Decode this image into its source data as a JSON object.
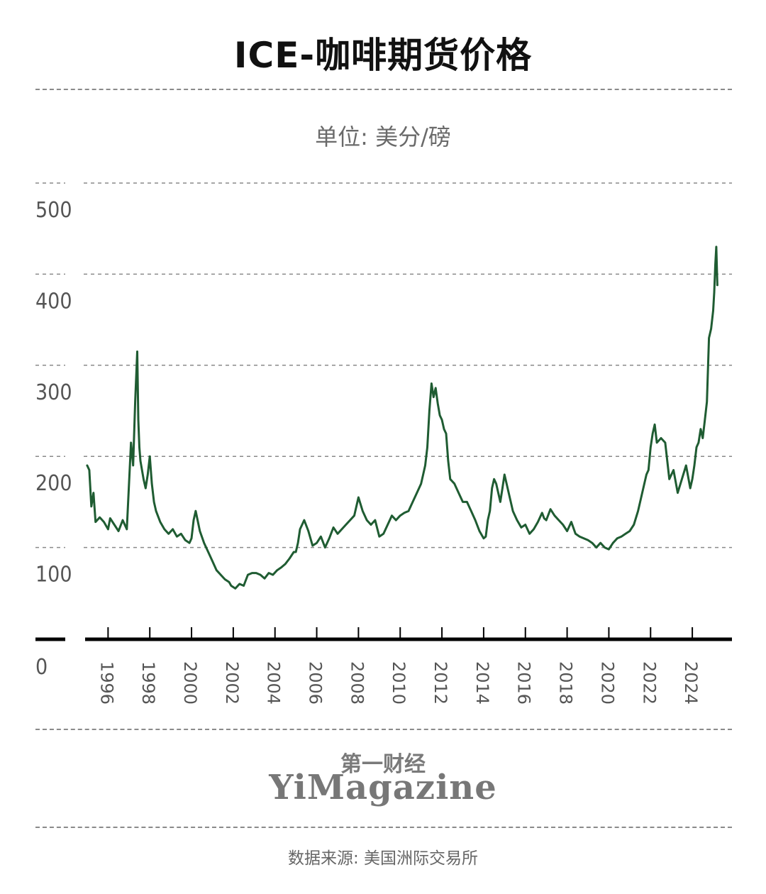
{
  "title": "ICE-咖啡期货价格",
  "subtitle": "单位: 美分/磅",
  "brand": {
    "cn": "第一财经",
    "en": "YiMagazine"
  },
  "source": "数据来源: 美国洲际交易所",
  "colors": {
    "line": "#1f5c32",
    "grid": "#8a8a8a",
    "axis": "#000000",
    "text": "#555555"
  },
  "chart_data": {
    "type": "line",
    "title": "ICE-咖啡期货价格",
    "subtitle": "单位: 美分/磅",
    "xlabel": "",
    "ylabel": "",
    "ylim": [
      0,
      500
    ],
    "xlim": [
      1994.9,
      2025.9
    ],
    "grid": true,
    "yticks": [
      0,
      100,
      200,
      300,
      400,
      500
    ],
    "xticks": [
      1996,
      1998,
      2000,
      2002,
      2004,
      2006,
      2008,
      2010,
      2012,
      2014,
      2016,
      2018,
      2020,
      2022,
      2024
    ],
    "series": [
      {
        "x": [
          1995.0,
          1995.1,
          1995.2,
          1995.3,
          1995.4,
          1995.6,
          1995.8,
          1996.0,
          1996.1,
          1996.3,
          1996.5,
          1996.7,
          1996.9,
          1997.1,
          1997.2,
          1997.3,
          1997.4,
          1997.45,
          1997.5,
          1997.55,
          1997.7,
          1997.8,
          1997.9,
          1998.0,
          1998.1,
          1998.2,
          1998.3,
          1998.5,
          1998.7,
          1998.9,
          1999.1,
          1999.3,
          1999.5,
          1999.7,
          1999.9,
          2000.0,
          2000.1,
          2000.2,
          2000.4,
          2000.6,
          2000.8,
          2001.0,
          2001.2,
          2001.4,
          2001.6,
          2001.8,
          2001.9,
          2002.1,
          2002.3,
          2002.5,
          2002.7,
          2002.9,
          2003.1,
          2003.3,
          2003.5,
          2003.7,
          2003.9,
          2004.1,
          2004.3,
          2004.5,
          2004.7,
          2004.9,
          2005.0,
          2005.1,
          2005.2,
          2005.4,
          2005.6,
          2005.8,
          2006.0,
          2006.2,
          2006.4,
          2006.6,
          2006.8,
          2007.0,
          2007.2,
          2007.4,
          2007.6,
          2007.8,
          2008.0,
          2008.2,
          2008.4,
          2008.6,
          2008.8,
          2009.0,
          2009.2,
          2009.4,
          2009.6,
          2009.8,
          2010.0,
          2010.2,
          2010.4,
          2010.6,
          2010.8,
          2011.0,
          2011.1,
          2011.2,
          2011.3,
          2011.4,
          2011.5,
          2011.6,
          2011.7,
          2011.8,
          2011.9,
          2012.0,
          2012.1,
          2012.2,
          2012.3,
          2012.4,
          2012.6,
          2012.8,
          2013.0,
          2013.2,
          2013.4,
          2013.6,
          2013.8,
          2014.0,
          2014.1,
          2014.2,
          2014.3,
          2014.4,
          2014.5,
          2014.6,
          2014.7,
          2014.8,
          2014.9,
          2015.0,
          2015.2,
          2015.4,
          2015.6,
          2015.8,
          2016.0,
          2016.2,
          2016.4,
          2016.6,
          2016.8,
          2016.9,
          2017.0,
          2017.2,
          2017.4,
          2017.6,
          2017.8,
          2018.0,
          2018.2,
          2018.4,
          2018.6,
          2018.8,
          2019.0,
          2019.2,
          2019.4,
          2019.6,
          2019.8,
          2020.0,
          2020.2,
          2020.4,
          2020.6,
          2020.8,
          2021.0,
          2021.2,
          2021.4,
          2021.6,
          2021.8,
          2021.9,
          2022.0,
          2022.1,
          2022.2,
          2022.3,
          2022.5,
          2022.7,
          2022.9,
          2023.1,
          2023.3,
          2023.5,
          2023.7,
          2023.9,
          2024.0,
          2024.1,
          2024.2,
          2024.3,
          2024.4,
          2024.5,
          2024.6,
          2024.7,
          2024.8,
          2024.9,
          2025.0,
          2025.05,
          2025.1,
          2025.15,
          2025.2
        ],
        "y": [
          190,
          185,
          145,
          160,
          128,
          133,
          128,
          120,
          132,
          125,
          118,
          130,
          120,
          215,
          190,
          260,
          315,
          240,
          210,
          195,
          175,
          165,
          180,
          200,
          170,
          150,
          140,
          128,
          120,
          115,
          120,
          112,
          115,
          108,
          105,
          110,
          130,
          140,
          118,
          105,
          95,
          85,
          75,
          70,
          65,
          62,
          58,
          55,
          60,
          58,
          70,
          72,
          72,
          70,
          66,
          72,
          70,
          75,
          78,
          82,
          88,
          95,
          95,
          105,
          120,
          130,
          118,
          102,
          105,
          112,
          100,
          110,
          122,
          115,
          120,
          125,
          130,
          135,
          155,
          140,
          130,
          125,
          130,
          112,
          115,
          125,
          135,
          130,
          135,
          138,
          140,
          150,
          160,
          170,
          180,
          190,
          210,
          250,
          280,
          265,
          275,
          258,
          245,
          240,
          230,
          225,
          195,
          175,
          170,
          160,
          150,
          150,
          140,
          130,
          118,
          110,
          112,
          130,
          140,
          165,
          175,
          170,
          160,
          150,
          165,
          180,
          160,
          140,
          130,
          122,
          125,
          115,
          120,
          128,
          138,
          132,
          130,
          142,
          135,
          130,
          125,
          118,
          128,
          115,
          112,
          110,
          108,
          105,
          100,
          105,
          100,
          98,
          105,
          110,
          112,
          115,
          118,
          125,
          140,
          160,
          180,
          185,
          210,
          225,
          235,
          215,
          220,
          215,
          175,
          185,
          160,
          175,
          190,
          165,
          175,
          190,
          210,
          215,
          230,
          220,
          240,
          260,
          330,
          340,
          360,
          380,
          410,
          430,
          388
        ]
      }
    ]
  }
}
